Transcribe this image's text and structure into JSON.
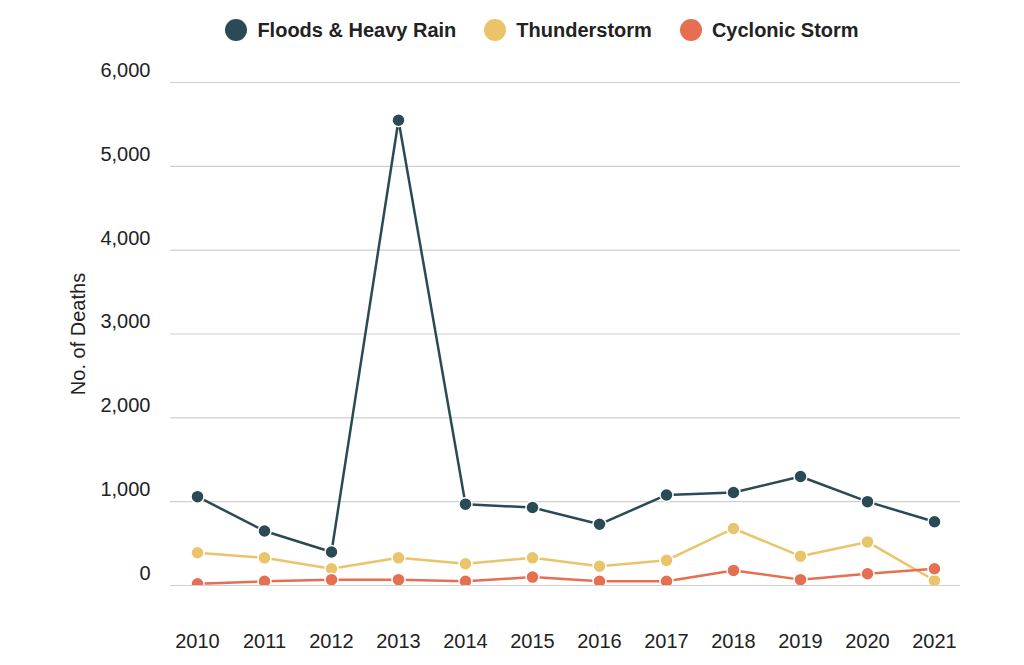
{
  "chart_data": {
    "type": "line",
    "y_label": "No. of Deaths",
    "categories": [
      "2010",
      "2011",
      "2012",
      "2013",
      "2014",
      "2015",
      "2016",
      "2017",
      "2018",
      "2019",
      "2020",
      "2021"
    ],
    "series": [
      {
        "name": "Floods & Heavy Rain",
        "color": "#2a4a55",
        "values": [
          1060,
          650,
          400,
          5550,
          970,
          930,
          730,
          1080,
          1110,
          1300,
          1000,
          760
        ]
      },
      {
        "name": "Thunderstorm",
        "color": "#e9c46a",
        "values": [
          390,
          330,
          200,
          330,
          260,
          330,
          230,
          300,
          680,
          350,
          520,
          60
        ]
      },
      {
        "name": "Cyclonic Storm",
        "color": "#e76f51",
        "values": [
          20,
          50,
          70,
          70,
          50,
          100,
          50,
          50,
          180,
          70,
          140,
          200
        ]
      }
    ],
    "ylim": [
      0,
      6000
    ],
    "yticks": [
      0,
      {
        "value": 1000,
        "label": "1,000"
      },
      {
        "value": 2000,
        "label": "2,000"
      },
      {
        "value": 3000,
        "label": "3,000"
      },
      {
        "value": 4000,
        "label": "4,000"
      },
      {
        "value": 5000,
        "label": "5,000"
      },
      {
        "value": 6000,
        "label": "6,000"
      }
    ],
    "grid": true,
    "legend": "top",
    "marker": "circle"
  }
}
